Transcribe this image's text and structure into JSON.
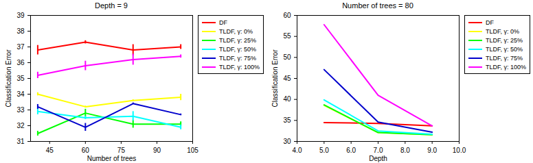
{
  "chart_data": [
    {
      "type": "line",
      "title": "Depth = 9",
      "x_label": "Number of trees",
      "y_label": "Classification Error",
      "x": [
        40,
        60,
        80,
        100
      ],
      "xlim": [
        37,
        105
      ],
      "xticks": [
        45,
        60,
        75,
        90,
        105
      ],
      "ylim": [
        31,
        39
      ],
      "yticks": [
        31,
        32,
        33,
        34,
        35,
        36,
        37,
        38,
        39
      ],
      "grid": false,
      "legend": "right",
      "series": [
        {
          "name": "DF",
          "color": "#ff0000",
          "values": [
            36.8,
            37.3,
            36.8,
            37.0
          ],
          "errors": [
            0.3,
            0.1,
            0.35,
            0.15
          ]
        },
        {
          "name": "TLDF, γ: 0%",
          "color": "#ffff00",
          "values": [
            34.0,
            33.2,
            33.6,
            33.8
          ],
          "errors": [
            0.1,
            0.05,
            0.05,
            0.2
          ]
        },
        {
          "name": "TLDF, γ: 25%",
          "color": "#00ff00",
          "values": [
            31.5,
            32.8,
            32.1,
            32.1
          ],
          "errors": [
            0.15,
            0.25,
            0.25,
            0.15
          ]
        },
        {
          "name": "TLDF, γ: 50%",
          "color": "#00ffff",
          "values": [
            32.9,
            32.5,
            32.6,
            31.9
          ],
          "errors": [
            0.2,
            0.1,
            0.3,
            0.15
          ]
        },
        {
          "name": "TLDF, γ: 75%",
          "color": "#0000cc",
          "values": [
            33.2,
            31.9,
            33.4,
            32.7
          ],
          "errors": [
            0.15,
            0.25,
            0.05,
            0.05
          ]
        },
        {
          "name": "TLDF, γ: 100%",
          "color": "#ff00ff",
          "values": [
            35.2,
            35.8,
            36.2,
            36.4
          ],
          "errors": [
            0.2,
            0.3,
            0.35,
            0.1
          ]
        }
      ]
    },
    {
      "type": "line",
      "title": "Number of trees = 80",
      "x_label": "Depth",
      "y_label": "Classification Error",
      "x": [
        5,
        7,
        9
      ],
      "xlim": [
        4,
        10
      ],
      "xticks": [
        4,
        5,
        6,
        7,
        8,
        9,
        10
      ],
      "ylim": [
        30,
        60
      ],
      "yticks": [
        30,
        35,
        40,
        45,
        50,
        55,
        60
      ],
      "grid": false,
      "legend": "right",
      "series": [
        {
          "name": "DF",
          "color": "#ff0000",
          "values": [
            34.5,
            34.3,
            33.7
          ]
        },
        {
          "name": "TLDF, γ: 0%",
          "color": "#ffff00",
          "values": [
            38.6,
            32.1,
            31.6
          ]
        },
        {
          "name": "TLDF, γ: 25%",
          "color": "#00ff00",
          "values": [
            38.7,
            32.1,
            31.6
          ]
        },
        {
          "name": "TLDF, γ: 50%",
          "color": "#00ffff",
          "values": [
            39.9,
            32.5,
            31.7
          ]
        },
        {
          "name": "TLDF, γ: 75%",
          "color": "#0000cc",
          "values": [
            47.1,
            34.6,
            32.2
          ]
        },
        {
          "name": "TLDF, γ: 100%",
          "color": "#ff00ff",
          "values": [
            57.8,
            41.0,
            33.7
          ]
        }
      ]
    }
  ]
}
